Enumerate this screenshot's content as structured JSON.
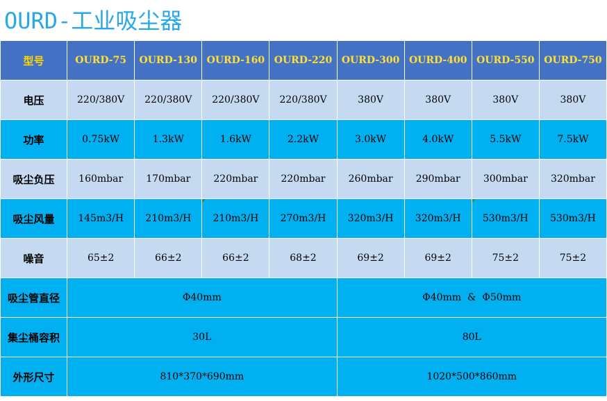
{
  "title": "OURD-工业吸尘器",
  "header": {
    "label": "型号",
    "models": [
      "OURD-75",
      "OURD-130",
      "OURD-160",
      "OURD-220",
      "OURD-300",
      "OURD-400",
      "OURD-550",
      "OURD-750"
    ]
  },
  "rows": {
    "voltage": {
      "label": "电压",
      "values": [
        "220/380V",
        "220/380V",
        "220/380V",
        "220/380V",
        "380V",
        "380V",
        "380V",
        "380V"
      ]
    },
    "power": {
      "label": "功率",
      "values": [
        "0.75kW",
        "1.3kW",
        "1.6kW",
        "2.2kW",
        "3.0kW",
        "4.0kW",
        "5.5kW",
        "7.5kW"
      ]
    },
    "vacuum": {
      "label": "吸尘负压",
      "values": [
        "160mbar",
        "170mbar",
        "220mbar",
        "220mbar",
        "260mbar",
        "290mbar",
        "300mbar",
        "320mbar"
      ]
    },
    "airflow": {
      "label": "吸尘风量",
      "values": [
        "145m3/H",
        "210m3/H",
        "210m3/H",
        "270m3/H",
        "320m3/H",
        "320m3/H",
        "530m3/H",
        "530m3/H"
      ]
    },
    "noise": {
      "label": "噪音",
      "values": [
        "65±2",
        "66±2",
        "66±2",
        "68±2",
        "69±2",
        "69±2",
        "75±2",
        "75±2"
      ]
    },
    "hose": {
      "label": "吸尘管直径",
      "left": "Φ40mm",
      "right": "Φ40mm  &  Φ50mm"
    },
    "bucket": {
      "label": "集尘桶容积",
      "left": "30L",
      "right": "80L"
    },
    "size": {
      "label": "外形尺寸",
      "left": "810*370*690mm",
      "right": "1020*500*860mm"
    }
  },
  "colors": {
    "title": "#29a8e8",
    "header_bg": "#4472c4",
    "header_text": "#ffe033",
    "light_row": "#c5d9f1",
    "bright_row": "#00b0f0"
  }
}
